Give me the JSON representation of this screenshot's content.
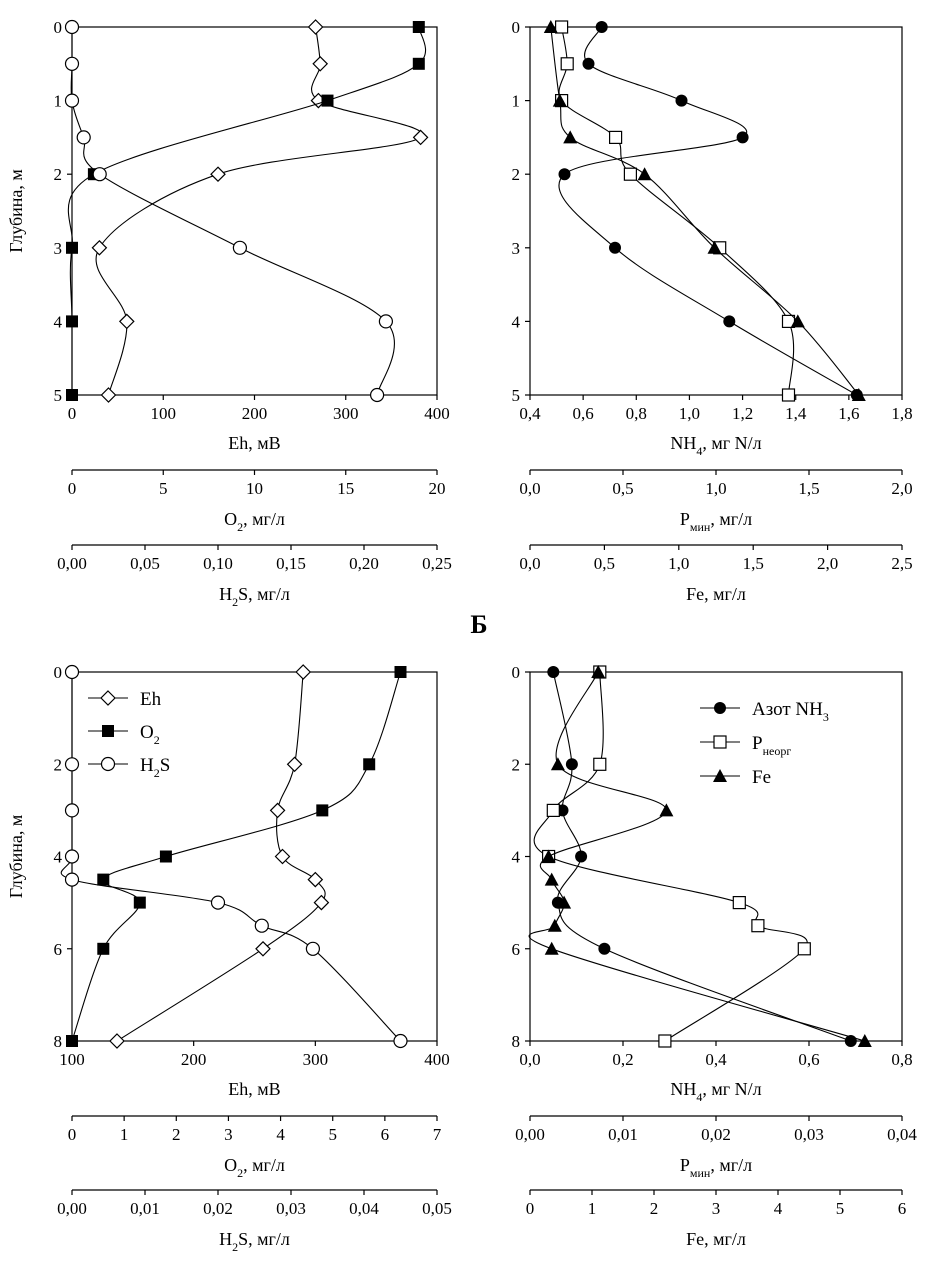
{
  "section_label": "Б",
  "markers": {
    "Eh": "diamond-open",
    "O2": "square-filled",
    "H2S": "circle-open",
    "NH4": "circle-filled",
    "P": "square-open",
    "Fe": "triangle-filled"
  },
  "chart_data": [
    {
      "id": "top-left",
      "type": "line",
      "ylabel": "Глубина, м",
      "ylim": [
        5,
        0
      ],
      "yticks": [
        "0",
        "1",
        "2",
        "3",
        "4",
        "5"
      ],
      "axes": [
        {
          "label": "Eh, мВ",
          "label_main": "Eh, мВ",
          "range": [
            0,
            400
          ],
          "ticks": [
            "0",
            "100",
            "200",
            "300",
            "400"
          ]
        },
        {
          "label": "O2, мг/л",
          "label_main": "O",
          "label_sub": "2",
          "label_rest": ", мг/л",
          "range": [
            0,
            20
          ],
          "ticks": [
            "0",
            "5",
            "10",
            "15",
            "20"
          ]
        },
        {
          "label": "H2S, мг/л",
          "label_main": "H",
          "label_sub": "2",
          "label_rest": "S, мг/л",
          "range": [
            0,
            0.25
          ],
          "ticks": [
            "0,00",
            "0,05",
            "0,10",
            "0,15",
            "0,20",
            "0,25"
          ]
        }
      ],
      "series": [
        {
          "key": "Eh",
          "axis": 0,
          "marker": "diamond-open",
          "depth": [
            0,
            0.5,
            1,
            1.5,
            2,
            3,
            4,
            5
          ],
          "values": [
            267,
            272,
            270,
            382,
            160,
            30,
            60,
            40
          ]
        },
        {
          "key": "O2",
          "axis": 1,
          "marker": "square-filled",
          "depth": [
            0,
            0.5,
            1,
            2,
            3,
            4,
            5
          ],
          "values": [
            19,
            19,
            14,
            1.2,
            0,
            0,
            0
          ]
        },
        {
          "key": "H2S",
          "axis": 2,
          "marker": "circle-open",
          "depth": [
            0,
            0.5,
            1,
            1.5,
            2,
            3,
            4,
            5
          ],
          "values": [
            0,
            0,
            0,
            0.008,
            0.019,
            0.115,
            0.215,
            0.209
          ]
        }
      ]
    },
    {
      "id": "top-right",
      "type": "line",
      "ylim": [
        5,
        0
      ],
      "yticks": [
        "0",
        "1",
        "2",
        "3",
        "4",
        "5"
      ],
      "axes": [
        {
          "label": "NH4, мг N/л",
          "label_main": "NH",
          "label_sub": "4",
          "label_rest": ", мг N/л",
          "range": [
            0.4,
            1.8
          ],
          "ticks": [
            "0,4",
            "0,6",
            "0,8",
            "1,0",
            "1,2",
            "1,4",
            "1,6",
            "1,8"
          ]
        },
        {
          "label": "Pмин, мг/л",
          "label_main": "P",
          "label_sub": "мин",
          "label_rest": ", мг/л",
          "range": [
            0,
            2.0
          ],
          "ticks": [
            "0,0",
            "0,5",
            "1,0",
            "1,5",
            "2,0"
          ]
        },
        {
          "label": "Fe, мг/л",
          "label_main": "Fe, мг/л",
          "range": [
            0,
            2.5
          ],
          "ticks": [
            "0,0",
            "0,5",
            "1,0",
            "1,5",
            "2,0",
            "2,5"
          ]
        }
      ],
      "series": [
        {
          "key": "NH4",
          "axis": 0,
          "marker": "circle-filled",
          "depth": [
            0,
            0.5,
            1,
            1.5,
            2,
            3,
            4,
            5
          ],
          "values": [
            0.67,
            0.62,
            0.97,
            1.2,
            0.53,
            0.72,
            1.15,
            1.63
          ]
        },
        {
          "key": "P",
          "axis": 1,
          "marker": "square-open",
          "depth": [
            0,
            0.5,
            1,
            1.5,
            2,
            3,
            4,
            5
          ],
          "values": [
            0.17,
            0.2,
            0.17,
            0.46,
            0.54,
            1.02,
            1.39,
            1.39
          ]
        },
        {
          "key": "Fe",
          "axis": 2,
          "marker": "triangle-filled",
          "depth": [
            0,
            1,
            1.5,
            2,
            3,
            4,
            5
          ],
          "values": [
            0.14,
            0.2,
            0.27,
            0.77,
            1.24,
            1.8,
            2.21
          ]
        }
      ]
    },
    {
      "id": "bottom-left",
      "type": "line",
      "ylabel": "Глубина, м",
      "ylim": [
        8,
        0
      ],
      "yticks": [
        "0",
        "2",
        "4",
        "6",
        "8"
      ],
      "axes": [
        {
          "label": "Eh, мВ",
          "label_main": "Eh, мВ",
          "range": [
            100,
            400
          ],
          "ticks": [
            "100",
            "200",
            "300",
            "400"
          ]
        },
        {
          "label": "O2, мг/л",
          "label_main": "O",
          "label_sub": "2",
          "label_rest": ", мг/л",
          "range": [
            0,
            7
          ],
          "ticks": [
            "0",
            "1",
            "2",
            "3",
            "4",
            "5",
            "6",
            "7"
          ]
        },
        {
          "label": "H2S, мг/л",
          "label_main": "H",
          "label_sub": "2",
          "label_rest": "S, мг/л",
          "range": [
            0,
            0.05
          ],
          "ticks": [
            "0,00",
            "0,01",
            "0,02",
            "0,03",
            "0,04",
            "0,05"
          ]
        }
      ],
      "legend": [
        {
          "key": "Eh",
          "main": "Eh",
          "sub": "",
          "rest": "",
          "marker": "diamond-open"
        },
        {
          "key": "O2",
          "main": "O",
          "sub": "2",
          "rest": "",
          "marker": "square-filled"
        },
        {
          "key": "H2S",
          "main": "H",
          "sub": "2",
          "rest": "S",
          "marker": "circle-open"
        }
      ],
      "series": [
        {
          "key": "Eh",
          "axis": 0,
          "marker": "diamond-open",
          "depth": [
            0,
            2,
            3,
            4,
            4.5,
            5,
            6,
            8
          ],
          "values": [
            290,
            283,
            269,
            273,
            300,
            305,
            257,
            137
          ]
        },
        {
          "key": "O2",
          "axis": 1,
          "marker": "square-filled",
          "depth": [
            0,
            2,
            3,
            4,
            4.5,
            5,
            6,
            8
          ],
          "values": [
            6.3,
            5.7,
            4.8,
            1.8,
            0.6,
            1.3,
            0.6,
            0
          ]
        },
        {
          "key": "H2S",
          "axis": 2,
          "marker": "circle-open",
          "depth": [
            0,
            2,
            3,
            4,
            4.5,
            5,
            5.5,
            6,
            8
          ],
          "values": [
            0,
            0,
            0,
            0,
            0,
            0.02,
            0.026,
            0.033,
            0.045
          ]
        }
      ]
    },
    {
      "id": "bottom-right",
      "type": "line",
      "ylim": [
        8,
        0
      ],
      "yticks": [
        "0",
        "2",
        "4",
        "6",
        "8"
      ],
      "axes": [
        {
          "label": "NH4, мг N/л",
          "label_main": "NH",
          "label_sub": "4",
          "label_rest": ", мг N/л",
          "range": [
            0,
            0.8
          ],
          "ticks": [
            "0,0",
            "0,2",
            "0,4",
            "0,6",
            "0,8"
          ]
        },
        {
          "label": "Pмин, мг/л",
          "label_main": "P",
          "label_sub": "мин",
          "label_rest": ", мг/л",
          "range": [
            0,
            0.04
          ],
          "ticks": [
            "0,00",
            "0,01",
            "0,02",
            "0,03",
            "0,04"
          ]
        },
        {
          "label": "Fe, мг/л",
          "label_main": "Fe, мг/л",
          "range": [
            0,
            6
          ],
          "ticks": [
            "0",
            "1",
            "2",
            "3",
            "4",
            "5",
            "6"
          ]
        }
      ],
      "legend": [
        {
          "key": "NH4",
          "main": "Азот NH",
          "sub": "3",
          "rest": "",
          "marker": "circle-filled"
        },
        {
          "key": "P",
          "main": "P",
          "sub": "неорг",
          "rest": "",
          "marker": "square-open"
        },
        {
          "key": "Fe",
          "main": "Fe",
          "sub": "",
          "rest": "",
          "marker": "triangle-filled"
        }
      ],
      "series": [
        {
          "key": "NH4",
          "axis": 0,
          "marker": "circle-filled",
          "depth": [
            0,
            2,
            3,
            4,
            5,
            6,
            8
          ],
          "values": [
            0.05,
            0.09,
            0.07,
            0.11,
            0.06,
            0.16,
            0.69
          ]
        },
        {
          "key": "P",
          "axis": 1,
          "marker": "square-open",
          "depth": [
            0,
            2,
            3,
            4,
            5,
            5.5,
            6,
            8
          ],
          "values": [
            0.0075,
            0.0075,
            0.0025,
            0.002,
            0.0225,
            0.0245,
            0.0295,
            0.0145
          ]
        },
        {
          "key": "Fe",
          "axis": 2,
          "marker": "triangle-filled",
          "depth": [
            0,
            2,
            3,
            4,
            4.5,
            5,
            5.5,
            6,
            8
          ],
          "values": [
            1.1,
            0.45,
            2.2,
            0.3,
            0.35,
            0.55,
            0.4,
            0.35,
            5.4
          ]
        }
      ]
    }
  ]
}
